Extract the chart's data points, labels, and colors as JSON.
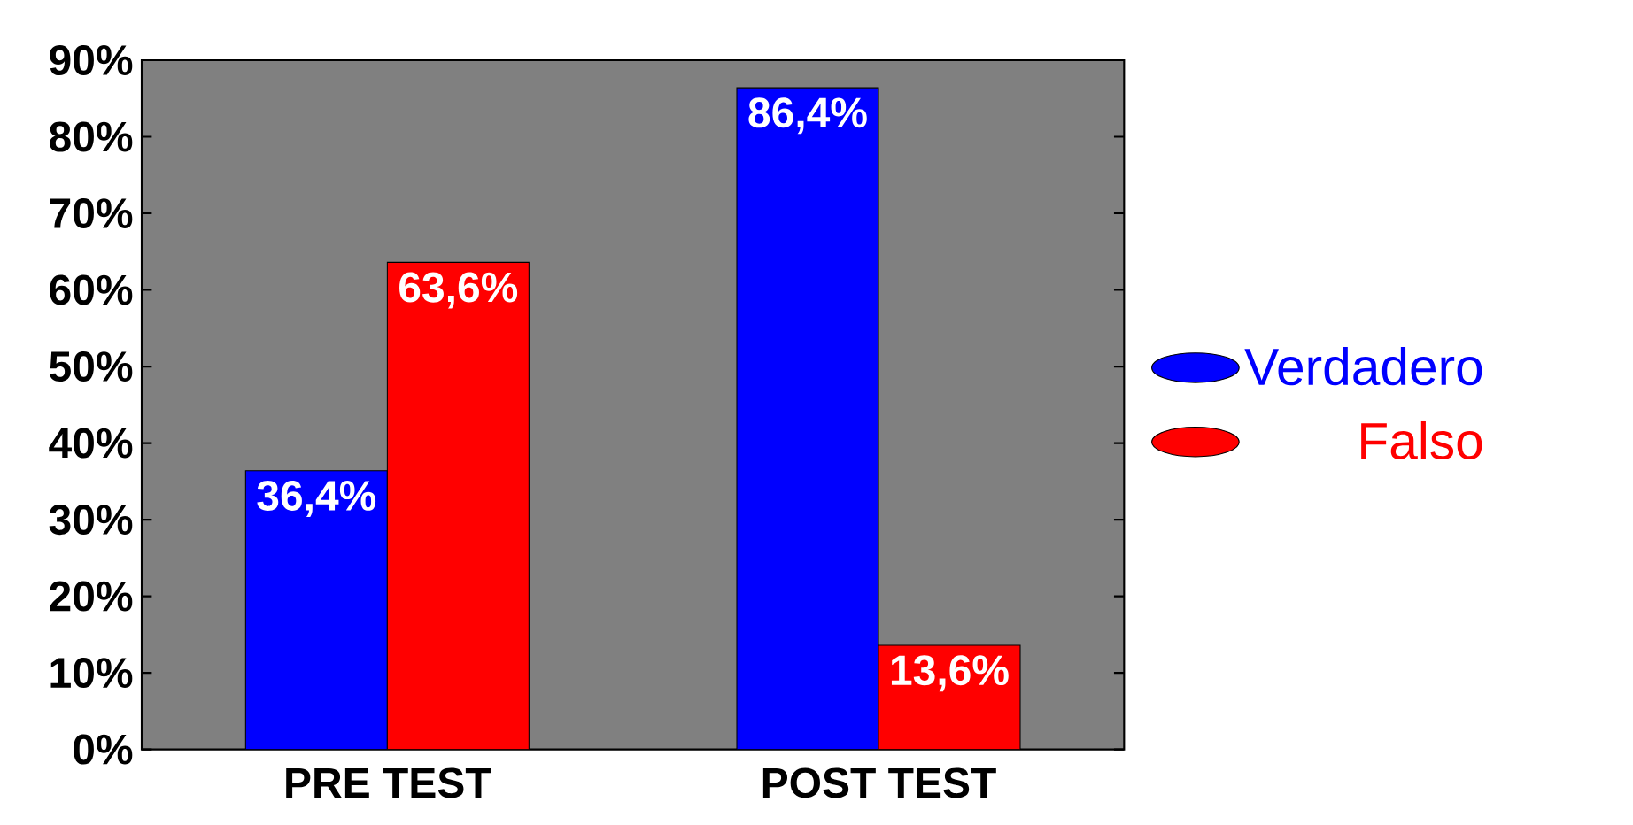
{
  "chart_data": {
    "type": "bar",
    "categories": [
      "PRE TEST",
      "POST TEST"
    ],
    "series": [
      {
        "name": "Verdadero",
        "color": "#0000ff",
        "values": [
          36.4,
          86.4
        ],
        "value_labels": [
          "36,4%",
          "86,4%"
        ]
      },
      {
        "name": "Falso",
        "color": "#ff0000",
        "values": [
          63.6,
          13.6
        ],
        "value_labels": [
          "63,6%",
          "13,6%"
        ]
      }
    ],
    "ylim": [
      0,
      90
    ],
    "yticks": [
      {
        "value": 0,
        "label": "0%"
      },
      {
        "value": 10,
        "label": "10%"
      },
      {
        "value": 20,
        "label": "20%"
      },
      {
        "value": 30,
        "label": "30%"
      },
      {
        "value": 40,
        "label": "40%"
      },
      {
        "value": 50,
        "label": "50%"
      },
      {
        "value": 60,
        "label": "60%"
      },
      {
        "value": 70,
        "label": "70%"
      },
      {
        "value": 80,
        "label": "80%"
      },
      {
        "value": 90,
        "label": "90%"
      }
    ],
    "grid": false,
    "legend": "right"
  }
}
